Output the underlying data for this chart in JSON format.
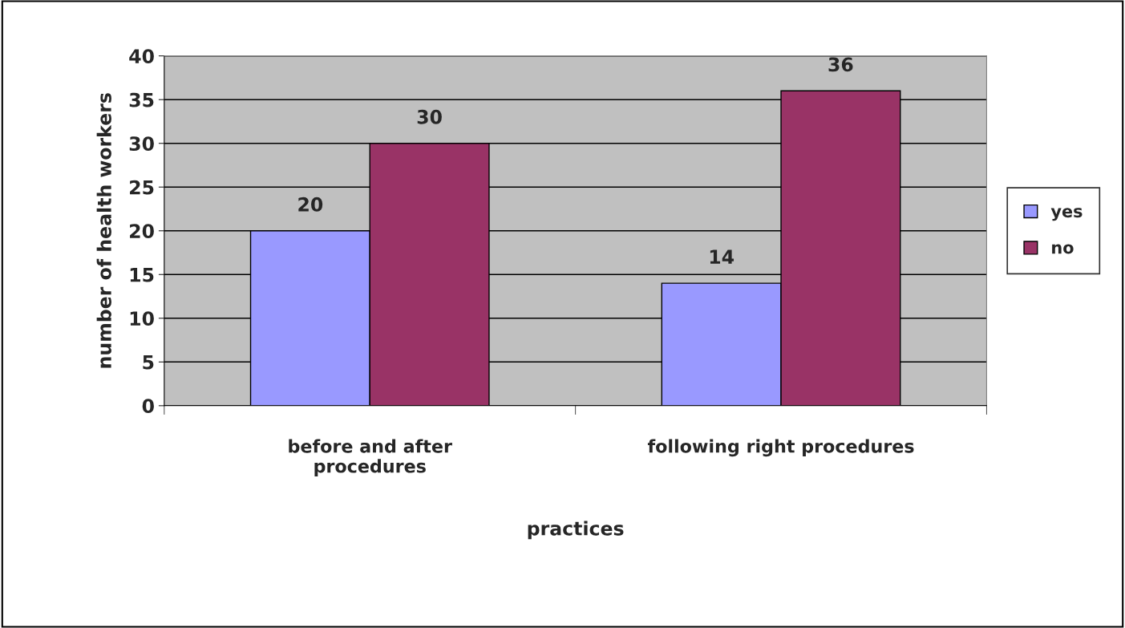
{
  "chart_data": {
    "type": "bar",
    "xlabel": "practices",
    "ylabel": "number of health workers",
    "categories": [
      "before and after\nprocedures",
      "following right procedures"
    ],
    "series": [
      {
        "name": "yes",
        "color": "#9999ff",
        "values": [
          20,
          14
        ]
      },
      {
        "name": "no",
        "color": "#993366",
        "values": [
          30,
          36
        ]
      }
    ],
    "ylim": [
      0,
      40
    ],
    "yticks": [
      0,
      5,
      10,
      15,
      20,
      25,
      30,
      35,
      40
    ],
    "grid": "y",
    "legend": "right",
    "data_labels": true
  }
}
